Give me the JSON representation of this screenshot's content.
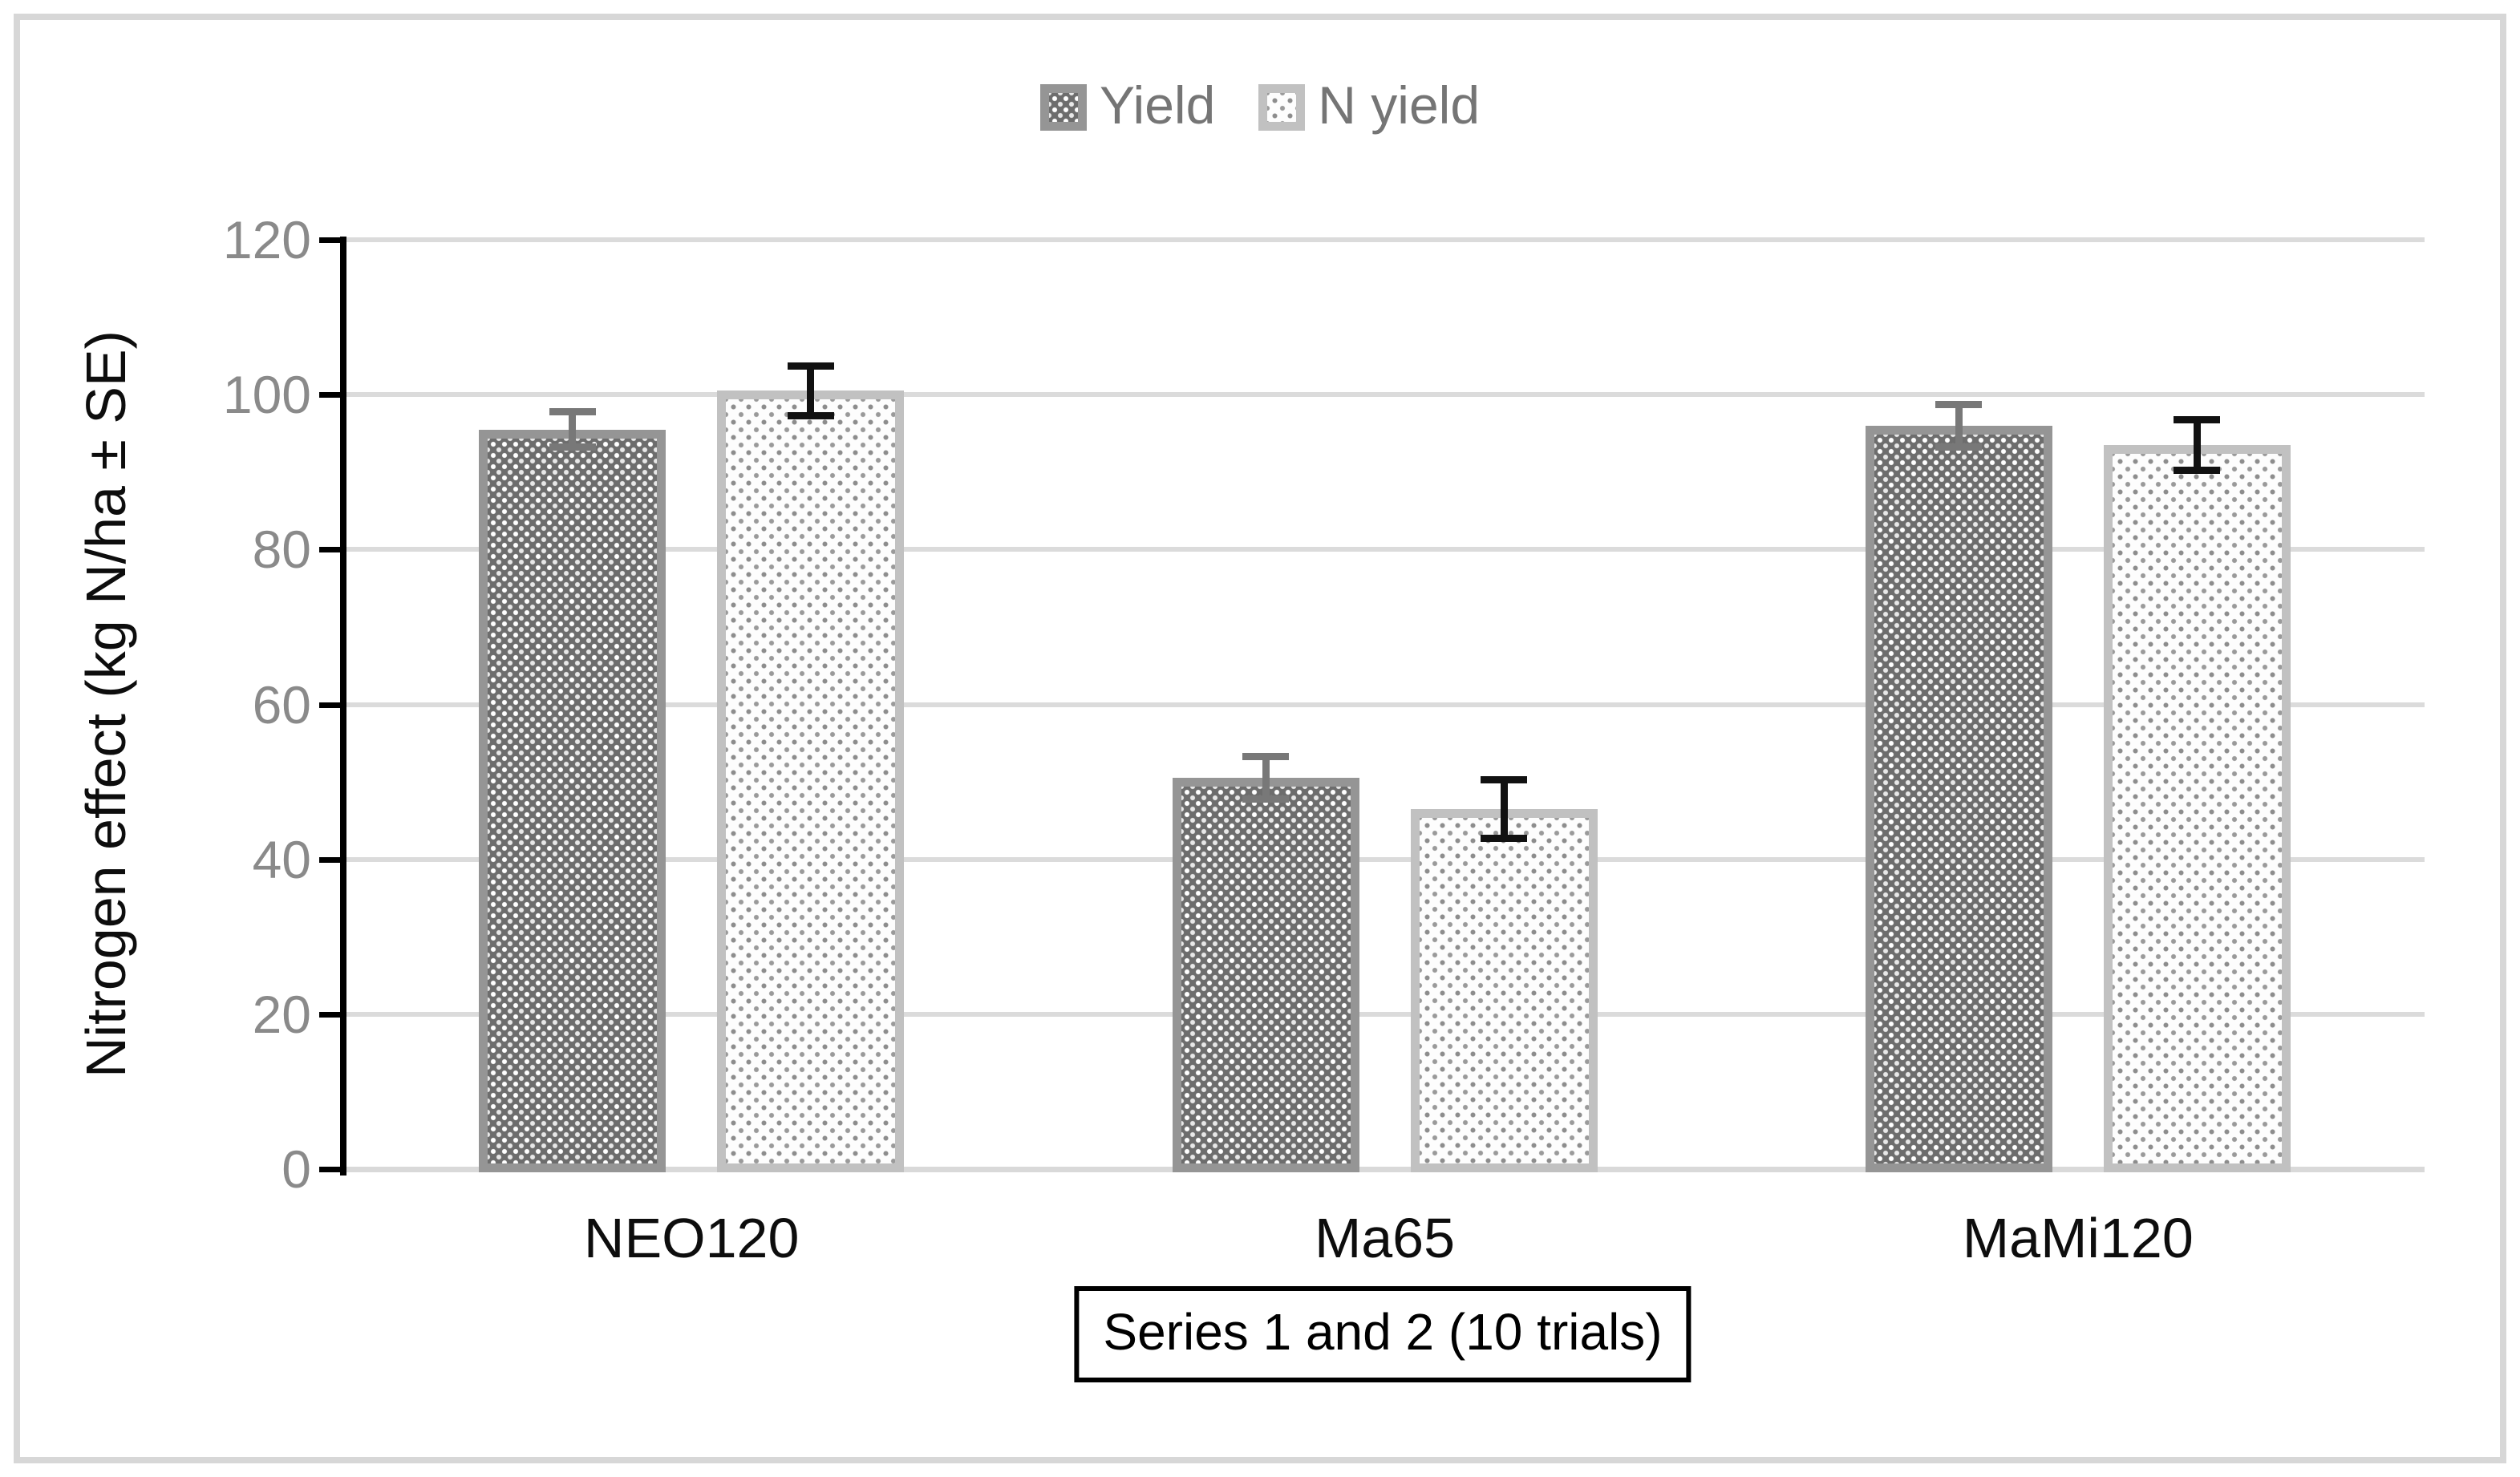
{
  "legend": {
    "items": [
      {
        "label": "Yield"
      },
      {
        "label": "N yield"
      }
    ]
  },
  "y_axis": {
    "title": "Nitrogen effect (kg N/ha ± SE)",
    "ticks": [
      0,
      20,
      40,
      60,
      80,
      100,
      120
    ],
    "min": 0,
    "max": 120,
    "tick_label_color": "#8a8a8a"
  },
  "x_axis": {
    "title_box": "Series 1 and 2 (10 trials)",
    "categories": [
      "NEO120",
      "Ma65",
      "MaMi120"
    ]
  },
  "chart_data": {
    "type": "bar",
    "categories": [
      "NEO120",
      "Ma65",
      "MaMi120"
    ],
    "series": [
      {
        "name": "Yield",
        "values": [
          95.5,
          50.5,
          96
        ],
        "se": [
          2.5,
          3,
          3
        ],
        "fill": "dark-gray-checker-pattern",
        "border_color": "#959595",
        "error_bar_color": "#787878"
      },
      {
        "name": "N yield",
        "values": [
          100.5,
          46.5,
          93.5
        ],
        "se": [
          3.5,
          4,
          3.5
        ],
        "fill": "white-gray-dot-pattern",
        "border_color": "#c1c1c1",
        "error_bar_color": "#111111"
      }
    ],
    "title": "",
    "ylabel": "Nitrogen effect (kg N/ha ± SE)",
    "xlabel": "Series 1 and 2 (10 trials)",
    "ylim": [
      0,
      120
    ],
    "grid": true,
    "gridline_color": "#dbdbdb",
    "legend_position": "top-center"
  }
}
